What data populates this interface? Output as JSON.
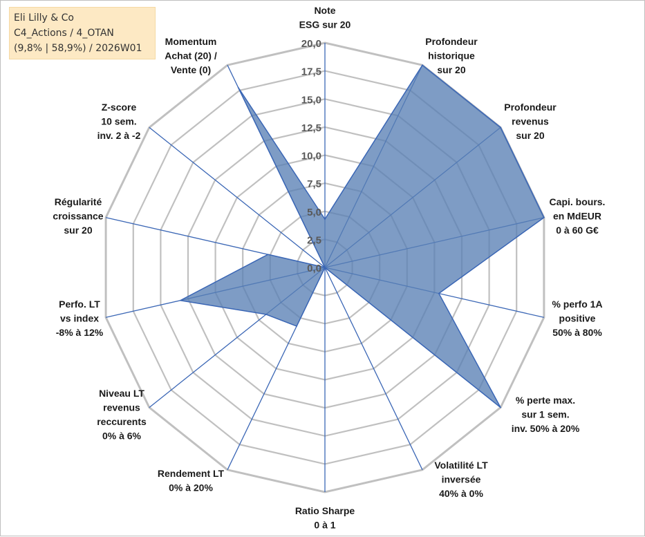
{
  "title_box": {
    "line1": "Eli Lilly & Co",
    "line2": "C4_Actions / 4_OTAN",
    "line3": "(9,8% | 58,9%) / 2026W01"
  },
  "chart_data": {
    "type": "radar",
    "rmin": 0,
    "rmax": 20,
    "ticks": [
      "0,0",
      "2,5",
      "5,0",
      "7,5",
      "10,0",
      "12,5",
      "15,0",
      "17,5",
      "20,0"
    ],
    "tick_values": [
      0,
      2.5,
      5,
      7.5,
      10,
      12.5,
      15,
      17.5,
      20
    ],
    "grid": true,
    "colors": {
      "fill": "#5a80b5",
      "line": "#3a66b5",
      "spoke": "#3a66b5",
      "grid": "#c0c0c0"
    },
    "axes": [
      {
        "name": "note-esg",
        "lines": [
          "Note",
          "ESG sur 20"
        ]
      },
      {
        "name": "profondeur-historique",
        "lines": [
          "Profondeur",
          "historique",
          "sur 20"
        ]
      },
      {
        "name": "profondeur-revenus",
        "lines": [
          "Profondeur",
          "revenus",
          "sur 20"
        ]
      },
      {
        "name": "capi-bours",
        "lines": [
          "Capi. bours.",
          "en MdEUR",
          "0 à 60 G€"
        ]
      },
      {
        "name": "perfo-1a",
        "lines": [
          "% perfo 1A",
          "positive",
          "50% à 80%"
        ]
      },
      {
        "name": "perte-max",
        "lines": [
          "% perte max.",
          "sur 1 sem.",
          "inv. 50% à 20%"
        ]
      },
      {
        "name": "volatilite-lt",
        "lines": [
          "Volatilité LT",
          "inversée",
          "40% à 0%"
        ]
      },
      {
        "name": "ratio-sharpe",
        "lines": [
          "Ratio Sharpe",
          "0 à 1"
        ]
      },
      {
        "name": "rendement-lt",
        "lines": [
          "Rendement LT",
          "0% à 20%"
        ]
      },
      {
        "name": "niveau-lt-revenus",
        "lines": [
          "Niveau LT",
          "revenus",
          "reccurents",
          "0% à 6%"
        ]
      },
      {
        "name": "perfo-lt-index",
        "lines": [
          "Perfo. LT",
          "vs index",
          "-8% à 12%"
        ]
      },
      {
        "name": "regularite-croissance",
        "lines": [
          "Régularité",
          "croissance",
          "sur 20"
        ]
      },
      {
        "name": "z-score",
        "lines": [
          "Z-score",
          "10 sem.",
          "inv. 2 à -2"
        ]
      },
      {
        "name": "momentum",
        "lines": [
          "Momentum",
          "Achat (20) /",
          "Vente (0)"
        ]
      }
    ],
    "values": [
      4.3,
      20,
      20,
      20,
      10.4,
      20,
      0,
      0,
      5.8,
      6.7,
      13.2,
      5.2,
      0,
      17.8
    ]
  }
}
